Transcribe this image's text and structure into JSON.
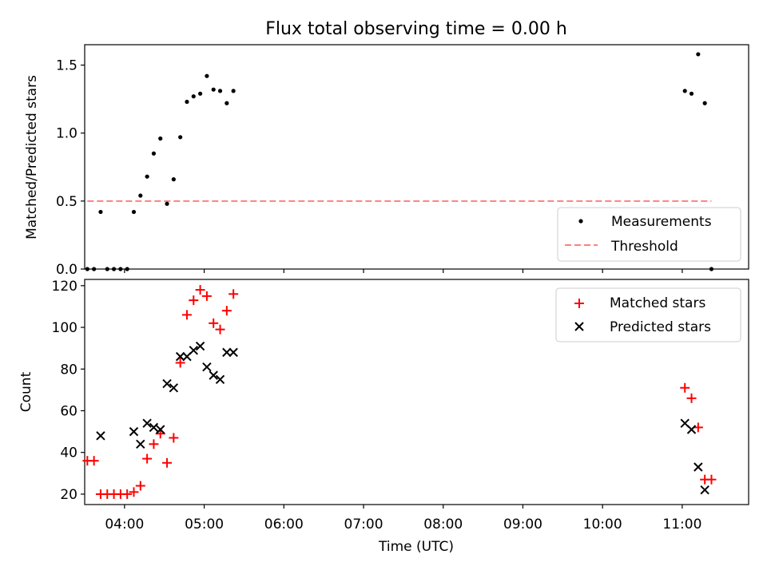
{
  "chart_data": [
    {
      "type": "scatter",
      "title": "Flux total observing time = 0.00 h",
      "xlabel": "",
      "ylabel": "Matched/Predicted stars",
      "xlim": [
        "03:30",
        "11:50"
      ],
      "ylim": [
        0,
        1.65
      ],
      "yticks": [
        "0.0",
        "0.5",
        "1.0",
        "1.5"
      ],
      "legend_position": "lower-right",
      "series": [
        {
          "name": "Measurements",
          "marker": "dot",
          "color": "#000000",
          "points": [
            {
              "x": "03:32",
              "y": 0
            },
            {
              "x": "03:37",
              "y": 0
            },
            {
              "x": "03:42",
              "y": 0.42
            },
            {
              "x": "03:47",
              "y": 0
            },
            {
              "x": "03:52",
              "y": 0
            },
            {
              "x": "03:57",
              "y": 0
            },
            {
              "x": "04:02",
              "y": 0
            },
            {
              "x": "04:07",
              "y": 0.42
            },
            {
              "x": "04:12",
              "y": 0.54
            },
            {
              "x": "04:17",
              "y": 0.68
            },
            {
              "x": "04:22",
              "y": 0.85
            },
            {
              "x": "04:27",
              "y": 0.96
            },
            {
              "x": "04:32",
              "y": 0.48
            },
            {
              "x": "04:37",
              "y": 0.66
            },
            {
              "x": "04:42",
              "y": 0.97
            },
            {
              "x": "04:47",
              "y": 1.23
            },
            {
              "x": "04:52",
              "y": 1.27
            },
            {
              "x": "04:57",
              "y": 1.29
            },
            {
              "x": "05:02",
              "y": 1.42
            },
            {
              "x": "05:07",
              "y": 1.32
            },
            {
              "x": "05:12",
              "y": 1.31
            },
            {
              "x": "05:17",
              "y": 1.22
            },
            {
              "x": "05:22",
              "y": 1.31
            },
            {
              "x": "11:02",
              "y": 1.31
            },
            {
              "x": "11:07",
              "y": 1.29
            },
            {
              "x": "11:12",
              "y": 1.58
            },
            {
              "x": "11:17",
              "y": 1.22
            },
            {
              "x": "11:22",
              "y": 0
            }
          ]
        },
        {
          "name": "Threshold",
          "marker": "dashed-line",
          "color": "#ff7f7f",
          "points": [
            {
              "x": "03:32",
              "y": 0.5
            },
            {
              "x": "11:22",
              "y": 0.5
            }
          ]
        }
      ]
    },
    {
      "type": "scatter",
      "title": "",
      "xlabel": "Time (UTC)",
      "ylabel": "Count",
      "xlim": [
        "03:30",
        "11:50"
      ],
      "ylim": [
        15,
        123
      ],
      "xticks": [
        "04:00",
        "05:00",
        "06:00",
        "07:00",
        "08:00",
        "09:00",
        "10:00",
        "11:00"
      ],
      "yticks": [
        "20",
        "40",
        "60",
        "80",
        "100",
        "120"
      ],
      "legend_position": "upper-right",
      "series": [
        {
          "name": "Matched stars",
          "marker": "plus",
          "color": "#ff0000",
          "points": [
            {
              "x": "03:32",
              "y": 36
            },
            {
              "x": "03:37",
              "y": 36
            },
            {
              "x": "03:42",
              "y": 20
            },
            {
              "x": "03:47",
              "y": 20
            },
            {
              "x": "03:52",
              "y": 20
            },
            {
              "x": "03:57",
              "y": 20
            },
            {
              "x": "04:02",
              "y": 20
            },
            {
              "x": "04:07",
              "y": 21
            },
            {
              "x": "04:12",
              "y": 24
            },
            {
              "x": "04:17",
              "y": 37
            },
            {
              "x": "04:22",
              "y": 44
            },
            {
              "x": "04:27",
              "y": 49
            },
            {
              "x": "04:32",
              "y": 35
            },
            {
              "x": "04:37",
              "y": 47
            },
            {
              "x": "04:42",
              "y": 83
            },
            {
              "x": "04:47",
              "y": 106
            },
            {
              "x": "04:52",
              "y": 113
            },
            {
              "x": "04:57",
              "y": 118
            },
            {
              "x": "05:02",
              "y": 115
            },
            {
              "x": "05:07",
              "y": 102
            },
            {
              "x": "05:12",
              "y": 99
            },
            {
              "x": "05:17",
              "y": 108
            },
            {
              "x": "05:22",
              "y": 116
            },
            {
              "x": "11:02",
              "y": 71
            },
            {
              "x": "11:07",
              "y": 66
            },
            {
              "x": "11:12",
              "y": 52
            },
            {
              "x": "11:17",
              "y": 27
            },
            {
              "x": "11:22",
              "y": 27
            }
          ]
        },
        {
          "name": "Predicted stars",
          "marker": "x",
          "color": "#000000",
          "points": [
            {
              "x": "03:42",
              "y": 48
            },
            {
              "x": "04:07",
              "y": 50
            },
            {
              "x": "04:12",
              "y": 44
            },
            {
              "x": "04:17",
              "y": 54
            },
            {
              "x": "04:22",
              "y": 52
            },
            {
              "x": "04:27",
              "y": 51
            },
            {
              "x": "04:32",
              "y": 73
            },
            {
              "x": "04:37",
              "y": 71
            },
            {
              "x": "04:42",
              "y": 86
            },
            {
              "x": "04:47",
              "y": 86
            },
            {
              "x": "04:52",
              "y": 89
            },
            {
              "x": "04:57",
              "y": 91
            },
            {
              "x": "05:02",
              "y": 81
            },
            {
              "x": "05:07",
              "y": 77
            },
            {
              "x": "05:12",
              "y": 75
            },
            {
              "x": "05:17",
              "y": 88
            },
            {
              "x": "05:22",
              "y": 88
            },
            {
              "x": "11:02",
              "y": 54
            },
            {
              "x": "11:07",
              "y": 51
            },
            {
              "x": "11:12",
              "y": 33
            },
            {
              "x": "11:17",
              "y": 22
            }
          ]
        }
      ]
    }
  ]
}
